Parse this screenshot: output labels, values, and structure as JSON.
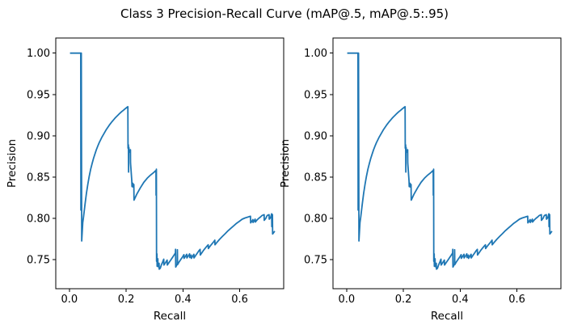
{
  "chart_data": {
    "type": "line",
    "title": "Class 3 Precision-Recall Curve (mAP@.5, mAP@.5:.95)",
    "grid": false,
    "legend": "none",
    "xlim": [
      -0.048,
      0.755
    ],
    "ylim": [
      0.7148,
      1.0183
    ],
    "xticks": [
      0.0,
      0.2,
      0.4,
      0.6
    ],
    "xtick_labels": [
      "0.0",
      "0.2",
      "0.4",
      "0.6"
    ],
    "yticks": [
      0.75,
      0.8,
      0.85,
      0.9,
      0.95,
      1.0
    ],
    "ytick_labels": [
      "0.75",
      "0.80",
      "0.85",
      "0.90",
      "0.95",
      "1.00"
    ],
    "subplots": [
      {
        "name": "pr-curve-left",
        "xlabel": "Recall",
        "ylabel": "Precision",
        "series_ref": 0
      },
      {
        "name": "pr-curve-right",
        "xlabel": "Recall",
        "ylabel": "Precision",
        "series_ref": 0
      }
    ],
    "series": [
      {
        "name": "precision-recall-curve",
        "color": "#1f77b4",
        "points": [
          [
            0.002,
            1.0
          ],
          [
            0.04,
            1.0
          ],
          [
            0.0405,
            0.81
          ],
          [
            0.042,
            1.0
          ],
          [
            0.0435,
            0.7726
          ],
          [
            0.047,
            0.795
          ],
          [
            0.05,
            0.802
          ],
          [
            0.055,
            0.817
          ],
          [
            0.06,
            0.83
          ],
          [
            0.065,
            0.8415
          ],
          [
            0.07,
            0.851
          ],
          [
            0.075,
            0.8595
          ],
          [
            0.08,
            0.8665
          ],
          [
            0.085,
            0.8725
          ],
          [
            0.09,
            0.878
          ],
          [
            0.095,
            0.883
          ],
          [
            0.1,
            0.8875
          ],
          [
            0.105,
            0.8915
          ],
          [
            0.11,
            0.895
          ],
          [
            0.115,
            0.8985
          ],
          [
            0.12,
            0.9015
          ],
          [
            0.125,
            0.9045
          ],
          [
            0.13,
            0.9075
          ],
          [
            0.135,
            0.91
          ],
          [
            0.14,
            0.9125
          ],
          [
            0.145,
            0.9148
          ],
          [
            0.15,
            0.917
          ],
          [
            0.155,
            0.919
          ],
          [
            0.16,
            0.921
          ],
          [
            0.165,
            0.9228
          ],
          [
            0.17,
            0.9246
          ],
          [
            0.175,
            0.9263
          ],
          [
            0.18,
            0.9279
          ],
          [
            0.185,
            0.9294
          ],
          [
            0.19,
            0.9308
          ],
          [
            0.195,
            0.9322
          ],
          [
            0.2,
            0.9336
          ],
          [
            0.206,
            0.9352
          ],
          [
            0.2065,
            0.885
          ],
          [
            0.208,
            0.889
          ],
          [
            0.2085,
            0.856
          ],
          [
            0.2095,
            0.886
          ],
          [
            0.211,
            0.88
          ],
          [
            0.215,
            0.883
          ],
          [
            0.2155,
            0.867
          ],
          [
            0.22,
            0.845
          ],
          [
            0.2205,
            0.8385
          ],
          [
            0.2235,
            0.8425
          ],
          [
            0.224,
            0.838
          ],
          [
            0.227,
            0.841
          ],
          [
            0.2275,
            0.822
          ],
          [
            0.238,
            0.8295
          ],
          [
            0.25,
            0.837
          ],
          [
            0.262,
            0.8435
          ],
          [
            0.274,
            0.8485
          ],
          [
            0.286,
            0.8525
          ],
          [
            0.297,
            0.8555
          ],
          [
            0.305,
            0.858
          ],
          [
            0.3055,
            0.828
          ],
          [
            0.3065,
            0.8595
          ],
          [
            0.307,
            0.748
          ],
          [
            0.3085,
            0.757
          ],
          [
            0.309,
            0.742
          ],
          [
            0.3115,
            0.751
          ],
          [
            0.312,
            0.7415
          ],
          [
            0.316,
            0.7455
          ],
          [
            0.3165,
            0.7385
          ],
          [
            0.32,
            0.7395
          ],
          [
            0.3245,
            0.744
          ],
          [
            0.329,
            0.7475
          ],
          [
            0.3325,
            0.7505
          ],
          [
            0.333,
            0.7435
          ],
          [
            0.339,
            0.7465
          ],
          [
            0.3445,
            0.7495
          ],
          [
            0.345,
            0.7435
          ],
          [
            0.351,
            0.7465
          ],
          [
            0.357,
            0.7495
          ],
          [
            0.363,
            0.7525
          ],
          [
            0.369,
            0.7555
          ],
          [
            0.3735,
            0.758
          ],
          [
            0.374,
            0.7625
          ],
          [
            0.3745,
            0.741
          ],
          [
            0.38,
            0.7445
          ],
          [
            0.3805,
            0.762
          ],
          [
            0.381,
            0.744
          ],
          [
            0.387,
            0.7475
          ],
          [
            0.393,
            0.7505
          ],
          [
            0.399,
            0.7535
          ],
          [
            0.4035,
            0.756
          ],
          [
            0.404,
            0.7515
          ],
          [
            0.41,
            0.7545
          ],
          [
            0.4135,
            0.7565
          ],
          [
            0.414,
            0.752
          ],
          [
            0.42,
            0.755
          ],
          [
            0.4235,
            0.757
          ],
          [
            0.424,
            0.7525
          ],
          [
            0.429,
            0.7555
          ],
          [
            0.4295,
            0.7515
          ],
          [
            0.435,
            0.7545
          ],
          [
            0.4385,
            0.7565
          ],
          [
            0.439,
            0.752
          ],
          [
            0.445,
            0.755
          ],
          [
            0.451,
            0.758
          ],
          [
            0.457,
            0.761
          ],
          [
            0.4605,
            0.7625
          ],
          [
            0.461,
            0.7555
          ],
          [
            0.467,
            0.7585
          ],
          [
            0.473,
            0.7615
          ],
          [
            0.479,
            0.764
          ],
          [
            0.485,
            0.7665
          ],
          [
            0.489,
            0.768
          ],
          [
            0.4895,
            0.7635
          ],
          [
            0.495,
            0.766
          ],
          [
            0.501,
            0.7685
          ],
          [
            0.507,
            0.771
          ],
          [
            0.5125,
            0.7735
          ],
          [
            0.513,
            0.768
          ],
          [
            0.519,
            0.7705
          ],
          [
            0.529,
            0.7745
          ],
          [
            0.539,
            0.778
          ],
          [
            0.549,
            0.7815
          ],
          [
            0.559,
            0.785
          ],
          [
            0.569,
            0.788
          ],
          [
            0.579,
            0.791
          ],
          [
            0.589,
            0.794
          ],
          [
            0.599,
            0.7965
          ],
          [
            0.609,
            0.799
          ],
          [
            0.619,
            0.8005
          ],
          [
            0.629,
            0.8015
          ],
          [
            0.638,
            0.8025
          ],
          [
            0.6385,
            0.7945
          ],
          [
            0.644,
            0.797
          ],
          [
            0.6465,
            0.7985
          ],
          [
            0.647,
            0.795
          ],
          [
            0.652,
            0.7975
          ],
          [
            0.6545,
            0.799
          ],
          [
            0.655,
            0.7955
          ],
          [
            0.661,
            0.798
          ],
          [
            0.667,
            0.8
          ],
          [
            0.673,
            0.8015
          ],
          [
            0.679,
            0.8035
          ],
          [
            0.686,
            0.8045
          ],
          [
            0.6865,
            0.7975
          ],
          [
            0.692,
            0.8
          ],
          [
            0.697,
            0.8035
          ],
          [
            0.7035,
            0.8045
          ],
          [
            0.704,
            0.799
          ],
          [
            0.709,
            0.801
          ],
          [
            0.7125,
            0.8055
          ],
          [
            0.713,
            0.79
          ],
          [
            0.7155,
            0.8045
          ],
          [
            0.716,
            0.781
          ],
          [
            0.7235,
            0.7845
          ]
        ]
      }
    ]
  }
}
